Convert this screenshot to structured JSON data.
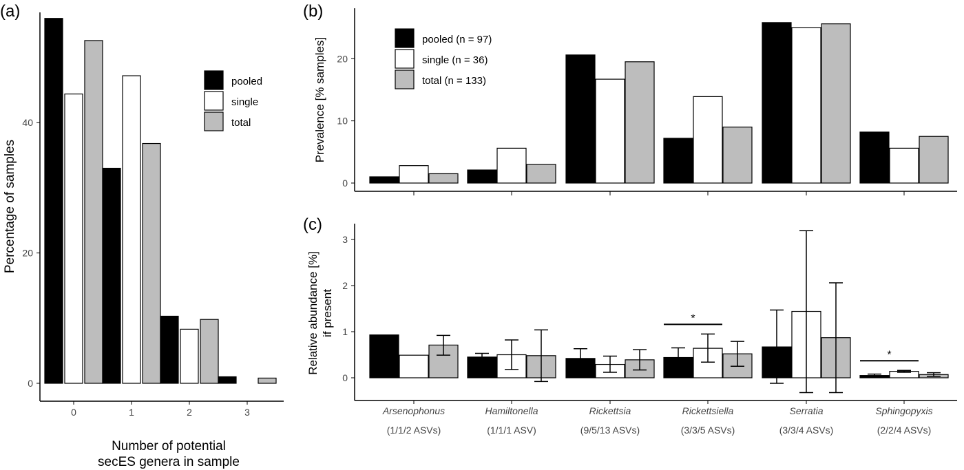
{
  "colors": {
    "pooled": "#000000",
    "single": "#ffffff",
    "total": "#bdbdbd",
    "stroke": "#000000"
  },
  "chart_data": [
    {
      "panel": "(a)",
      "type": "bar",
      "xlabel_lines": [
        "Number of potential",
        "secES genera in sample"
      ],
      "ylabel": "Percentage of samples",
      "categories": [
        "0",
        "1",
        "2",
        "3"
      ],
      "ylim": [
        0,
        56.5
      ],
      "yticks": [
        0,
        20,
        40
      ],
      "legend": {
        "position": "top-right",
        "entries": [
          "pooled",
          "single",
          "total"
        ]
      },
      "series": [
        {
          "name": "pooled",
          "values": [
            56.0,
            33.0,
            10.3,
            1.0
          ]
        },
        {
          "name": "single",
          "values": [
            44.4,
            47.2,
            8.3,
            0.0
          ]
        },
        {
          "name": "total",
          "values": [
            52.6,
            36.8,
            9.8,
            0.8
          ]
        }
      ]
    },
    {
      "panel": "(b)",
      "type": "bar",
      "ylabel": "Prevalence [% samples]",
      "categories": [
        "Arsenophonus",
        "Hamiltonella",
        "Rickettsia",
        "Rickettsiella",
        "Serratia",
        "Sphingopyxis"
      ],
      "ylim": [
        0,
        27
      ],
      "yticks": [
        0,
        10,
        20
      ],
      "legend": {
        "position": "top-left",
        "entries": [
          "pooled (n = 97)",
          "single (n = 36)",
          "total (n = 133)"
        ]
      },
      "series": [
        {
          "name": "pooled",
          "values": [
            1.0,
            2.1,
            20.6,
            7.2,
            25.8,
            8.2
          ]
        },
        {
          "name": "single",
          "values": [
            2.8,
            5.6,
            16.7,
            13.9,
            25.0,
            5.6
          ]
        },
        {
          "name": "total",
          "values": [
            1.5,
            3.0,
            19.5,
            9.0,
            25.6,
            7.5
          ]
        }
      ]
    },
    {
      "panel": "(c)",
      "type": "bar",
      "ylabel_lines": [
        "Relative abundance [%]",
        "if present"
      ],
      "categories": [
        "Arsenophonus",
        "Hamiltonella",
        "Rickettsia",
        "Rickettsiella",
        "Serratia",
        "Sphingopyxis"
      ],
      "category_sublabels": [
        "(1/1/2 ASVs)",
        "(1/1/1 ASV)",
        "(9/5/13 ASVs)",
        "(3/3/5 ASVs)",
        "(3/3/4 ASVs)",
        "(2/2/4 ASVs)"
      ],
      "ylim": [
        -0.35,
        3.35
      ],
      "yticks": [
        0,
        1,
        2,
        3
      ],
      "series": [
        {
          "name": "pooled",
          "values": [
            0.93,
            0.45,
            0.42,
            0.44,
            0.67,
            0.05
          ],
          "err_low": [
            null,
            0.37,
            0.21,
            0.22,
            -0.12,
            0.02
          ],
          "err_high": [
            null,
            0.53,
            0.63,
            0.65,
            1.47,
            0.08
          ]
        },
        {
          "name": "single",
          "values": [
            0.49,
            0.5,
            0.29,
            0.64,
            1.44,
            0.14
          ],
          "err_low": [
            null,
            0.18,
            0.12,
            0.34,
            -0.32,
            0.12
          ],
          "err_high": [
            null,
            0.82,
            0.47,
            0.95,
            3.19,
            0.16
          ]
        },
        {
          "name": "total",
          "values": [
            0.71,
            0.48,
            0.39,
            0.52,
            0.87,
            0.07
          ],
          "err_low": [
            0.49,
            -0.08,
            0.17,
            0.25,
            -0.32,
            0.03
          ],
          "err_high": [
            0.92,
            1.04,
            0.61,
            0.79,
            2.06,
            0.11
          ]
        }
      ],
      "significance": [
        {
          "category": "Rickettsiella",
          "label": "*"
        },
        {
          "category": "Sphingopyxis",
          "label": "*"
        }
      ]
    }
  ]
}
